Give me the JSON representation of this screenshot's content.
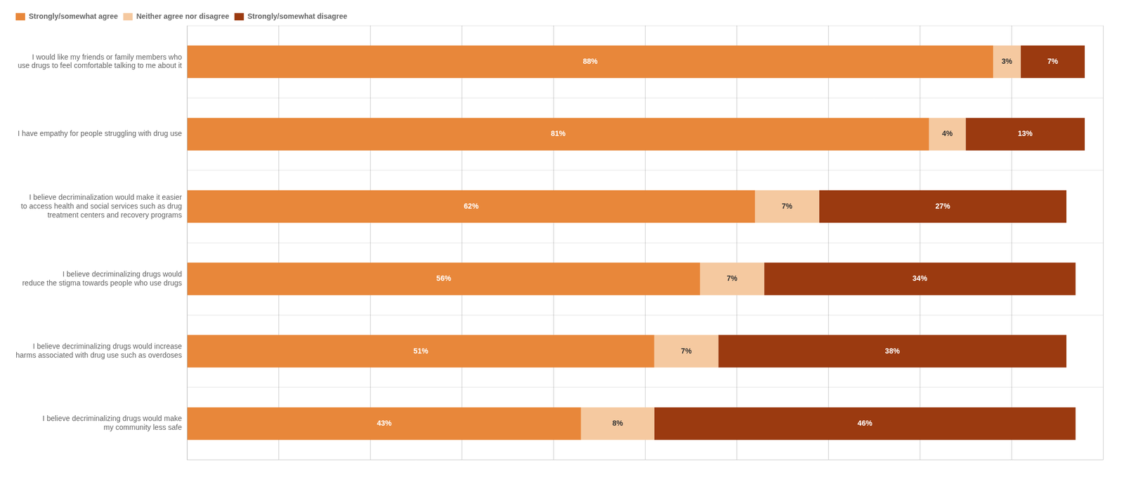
{
  "chart_data": {
    "type": "bar",
    "orientation": "horizontal",
    "stacked": true,
    "categories": [
      "I would like my friends or family members who\nuse drugs to feel comfortable talking to me about it",
      "I have empathy for people struggling with drug use",
      "I believe decriminalization would make it easier\nto access health and social services such as drug\ntreatment centers and recovery programs",
      "I believe decriminalizing drugs would\nreduce the stigma towards people who use drugs",
      "I believe decriminalizing drugs would increase\nharms associated with drug use such as overdoses",
      "I believe decriminalizing drugs would make\nmy community less safe"
    ],
    "series": [
      {
        "name": "Strongly/somewhat agree",
        "color": "#E8873A",
        "values": [
          88,
          81,
          62,
          56,
          51,
          43
        ],
        "value_labels": [
          "88%",
          "81%",
          "62%",
          "56%",
          "51%",
          "43%"
        ]
      },
      {
        "name": "Neither agree nor disagree",
        "color": "#F5C9A0",
        "values": [
          3,
          4,
          7,
          7,
          7,
          8
        ],
        "value_labels": [
          "3%",
          "4%",
          "7%",
          "7%",
          "7%",
          "8%"
        ]
      },
      {
        "name": "Strongly/somewhat disagree",
        "color": "#9B3A10",
        "values": [
          7,
          13,
          27,
          34,
          38,
          46
        ],
        "value_labels": [
          "7%",
          "13%",
          "27%",
          "34%",
          "38%",
          "46%"
        ]
      }
    ],
    "xlim": [
      0,
      100
    ],
    "xticks": [
      0,
      10,
      20,
      30,
      40,
      50,
      60,
      70,
      80,
      90,
      100
    ],
    "grid": true,
    "legend": "upper left",
    "data_labels": true,
    "tick_labels": "y"
  }
}
